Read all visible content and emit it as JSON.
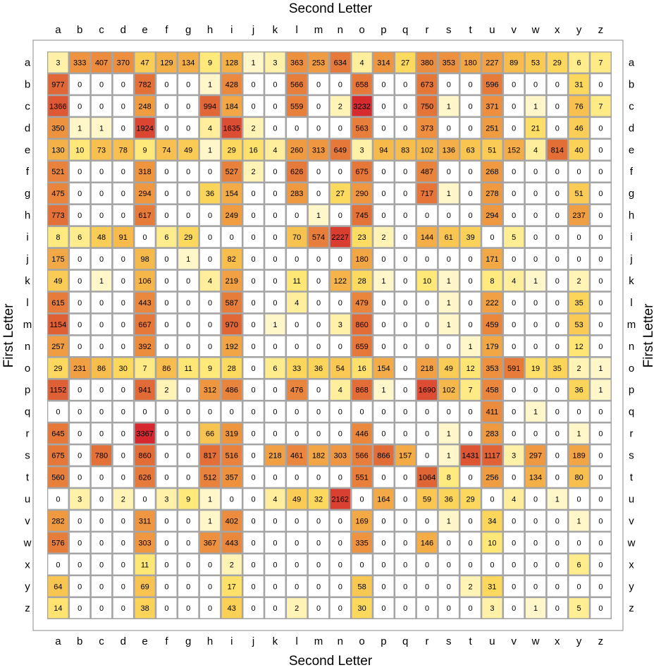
{
  "chart_data": {
    "type": "heatmap",
    "title": "",
    "xlabel": "Second Letter",
    "ylabel": "First Letter",
    "x_categories": [
      "a",
      "b",
      "c",
      "d",
      "e",
      "f",
      "g",
      "h",
      "i",
      "j",
      "k",
      "l",
      "m",
      "n",
      "o",
      "p",
      "q",
      "r",
      "s",
      "t",
      "u",
      "v",
      "w",
      "x",
      "y",
      "z"
    ],
    "y_categories": [
      "a",
      "b",
      "c",
      "d",
      "e",
      "f",
      "g",
      "h",
      "i",
      "j",
      "k",
      "l",
      "m",
      "n",
      "o",
      "p",
      "q",
      "r",
      "s",
      "t",
      "u",
      "v",
      "w",
      "x",
      "y",
      "z"
    ],
    "values": [
      [
        3,
        333,
        407,
        370,
        47,
        129,
        134,
        9,
        128,
        1,
        3,
        363,
        253,
        634,
        4,
        314,
        27,
        380,
        353,
        180,
        227,
        89,
        53,
        29,
        6,
        7
      ],
      [
        977,
        0,
        0,
        0,
        782,
        0,
        0,
        1,
        428,
        0,
        0,
        566,
        0,
        0,
        658,
        0,
        0,
        673,
        0,
        0,
        596,
        0,
        0,
        0,
        31,
        0
      ],
      [
        1366,
        0,
        0,
        0,
        248,
        0,
        0,
        994,
        184,
        0,
        0,
        559,
        0,
        2,
        3232,
        0,
        0,
        750,
        1,
        0,
        371,
        0,
        1,
        0,
        76,
        7
      ],
      [
        350,
        1,
        1,
        0,
        1924,
        0,
        0,
        4,
        1635,
        2,
        0,
        0,
        0,
        0,
        563,
        0,
        0,
        373,
        0,
        0,
        251,
        0,
        21,
        0,
        46,
        0
      ],
      [
        130,
        10,
        73,
        78,
        9,
        74,
        49,
        1,
        29,
        16,
        4,
        260,
        313,
        649,
        3,
        94,
        83,
        102,
        136,
        63,
        51,
        152,
        4,
        814,
        40,
        0
      ],
      [
        521,
        0,
        0,
        0,
        318,
        0,
        0,
        0,
        527,
        2,
        0,
        626,
        0,
        0,
        675,
        0,
        0,
        487,
        0,
        0,
        268,
        0,
        0,
        0,
        0,
        0
      ],
      [
        475,
        0,
        0,
        0,
        294,
        0,
        0,
        36,
        154,
        0,
        0,
        283,
        0,
        27,
        290,
        0,
        0,
        717,
        1,
        0,
        278,
        0,
        0,
        0,
        51,
        0
      ],
      [
        773,
        0,
        0,
        0,
        617,
        0,
        0,
        0,
        249,
        0,
        0,
        0,
        1,
        0,
        745,
        0,
        0,
        0,
        0,
        0,
        294,
        0,
        0,
        0,
        237,
        0
      ],
      [
        8,
        6,
        48,
        91,
        0,
        6,
        29,
        0,
        0,
        0,
        0,
        70,
        574,
        2227,
        23,
        2,
        0,
        144,
        61,
        39,
        0,
        5,
        0,
        0,
        0,
        0
      ],
      [
        175,
        0,
        0,
        0,
        98,
        0,
        1,
        0,
        82,
        0,
        0,
        0,
        0,
        0,
        180,
        0,
        0,
        0,
        0,
        0,
        171,
        0,
        0,
        0,
        0,
        0
      ],
      [
        49,
        0,
        1,
        0,
        106,
        0,
        0,
        4,
        219,
        0,
        0,
        11,
        0,
        122,
        28,
        1,
        0,
        10,
        1,
        0,
        8,
        4,
        1,
        0,
        2,
        0
      ],
      [
        615,
        0,
        0,
        0,
        443,
        0,
        0,
        0,
        587,
        0,
        0,
        4,
        0,
        0,
        479,
        0,
        0,
        0,
        1,
        0,
        222,
        0,
        0,
        0,
        35,
        0
      ],
      [
        1154,
        0,
        0,
        0,
        667,
        0,
        0,
        0,
        970,
        0,
        1,
        0,
        0,
        3,
        860,
        0,
        0,
        0,
        1,
        0,
        459,
        0,
        0,
        0,
        53,
        0
      ],
      [
        257,
        0,
        0,
        0,
        392,
        0,
        0,
        0,
        192,
        0,
        0,
        0,
        0,
        0,
        659,
        0,
        0,
        0,
        0,
        1,
        179,
        0,
        0,
        0,
        12,
        0
      ],
      [
        29,
        231,
        86,
        30,
        7,
        86,
        11,
        9,
        28,
        0,
        6,
        33,
        36,
        54,
        16,
        154,
        0,
        218,
        49,
        12,
        353,
        591,
        19,
        35,
        2,
        1
      ],
      [
        1152,
        0,
        0,
        0,
        941,
        2,
        0,
        312,
        486,
        0,
        0,
        476,
        0,
        4,
        868,
        1,
        0,
        1690,
        102,
        7,
        458,
        0,
        0,
        0,
        36,
        1
      ],
      [
        0,
        0,
        0,
        0,
        0,
        0,
        0,
        0,
        0,
        0,
        0,
        0,
        0,
        0,
        0,
        0,
        0,
        0,
        0,
        0,
        411,
        0,
        1,
        0,
        0,
        0
      ],
      [
        645,
        0,
        0,
        0,
        3367,
        0,
        0,
        66,
        319,
        0,
        0,
        0,
        0,
        0,
        446,
        0,
        0,
        0,
        1,
        0,
        283,
        0,
        0,
        0,
        1,
        0
      ],
      [
        675,
        0,
        780,
        0,
        860,
        0,
        0,
        817,
        516,
        0,
        218,
        461,
        182,
        303,
        566,
        866,
        157,
        0,
        1,
        1431,
        1117,
        3,
        297,
        0,
        189,
        0
      ],
      [
        560,
        0,
        0,
        0,
        626,
        0,
        0,
        512,
        357,
        0,
        0,
        0,
        0,
        0,
        551,
        0,
        0,
        1064,
        8,
        0,
        256,
        0,
        134,
        0,
        80,
        0
      ],
      [
        0,
        3,
        0,
        2,
        0,
        3,
        9,
        1,
        0,
        0,
        4,
        49,
        32,
        2162,
        0,
        164,
        0,
        59,
        36,
        29,
        0,
        4,
        0,
        1,
        0,
        0
      ],
      [
        282,
        0,
        0,
        0,
        311,
        0,
        0,
        1,
        402,
        0,
        0,
        0,
        0,
        0,
        169,
        0,
        0,
        0,
        1,
        0,
        34,
        0,
        0,
        0,
        1,
        0
      ],
      [
        576,
        0,
        0,
        0,
        303,
        0,
        0,
        367,
        443,
        0,
        0,
        0,
        0,
        0,
        335,
        0,
        0,
        146,
        0,
        0,
        10,
        0,
        0,
        0,
        0,
        0
      ],
      [
        0,
        0,
        0,
        0,
        11,
        0,
        0,
        0,
        2,
        0,
        0,
        0,
        0,
        0,
        0,
        0,
        0,
        0,
        0,
        0,
        0,
        0,
        0,
        0,
        6,
        0
      ],
      [
        64,
        0,
        0,
        0,
        69,
        0,
        0,
        0,
        17,
        0,
        0,
        0,
        0,
        0,
        58,
        0,
        0,
        0,
        0,
        2,
        31,
        0,
        0,
        0,
        0,
        0
      ],
      [
        14,
        0,
        0,
        0,
        38,
        0,
        0,
        0,
        43,
        0,
        0,
        2,
        0,
        0,
        30,
        0,
        0,
        0,
        0,
        0,
        3,
        0,
        1,
        0,
        5,
        0
      ]
    ],
    "color_scale": {
      "zero": "#ffffff",
      "stops": [
        "#fffbea",
        "#fff3b3",
        "#ffe97a",
        "#fcd85c",
        "#f6b84a",
        "#ee9440",
        "#e06535",
        "#d6292f"
      ]
    },
    "grid": true,
    "frame_color": "#a5a5a5"
  }
}
